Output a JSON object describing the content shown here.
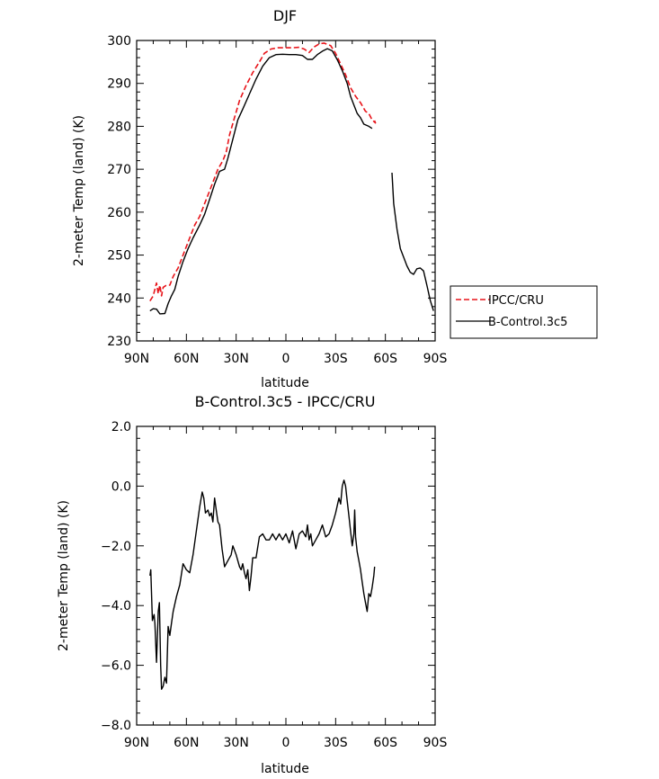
{
  "chart_data": [
    {
      "type": "line",
      "title": "DJF",
      "xlabel": "latitude",
      "ylabel": "2-meter Temp (land) (K)",
      "xlim": [
        90,
        -90
      ],
      "ylim": [
        230,
        300
      ],
      "x_ticks": [
        90,
        60,
        30,
        0,
        -30,
        -60,
        -90
      ],
      "x_tick_labels": [
        "90N",
        "60N",
        "30N",
        "0",
        "30S",
        "60S",
        "90S"
      ],
      "y_ticks": [
        230,
        240,
        250,
        260,
        270,
        280,
        290,
        300
      ],
      "y_tick_labels": [
        "230",
        "240",
        "250",
        "260",
        "270",
        "280",
        "290",
        "300"
      ],
      "legend_position": "right",
      "series": [
        {
          "name": "IPCC/CRU",
          "color": "#e8141a",
          "dash": true,
          "segments": [
            [
              [
                82,
                239.3
              ],
              [
                80,
                240.5
              ],
              [
                78,
                243.5
              ],
              [
                77,
                241
              ],
              [
                76,
                243
              ],
              [
                75,
                240.5
              ],
              [
                74,
                242.5
              ],
              [
                72,
                243
              ],
              [
                70,
                243
              ],
              [
                68,
                245
              ],
              [
                65,
                247
              ],
              [
                62,
                250
              ],
              [
                58,
                254
              ],
              [
                55,
                257
              ],
              [
                52,
                259
              ],
              [
                49,
                262
              ],
              [
                46,
                265
              ],
              [
                43,
                268
              ],
              [
                41,
                270
              ],
              [
                38,
                272
              ],
              [
                36,
                274
              ],
              [
                34,
                278
              ],
              [
                31,
                282
              ],
              [
                28,
                286
              ],
              [
                24,
                289.5
              ],
              [
                20,
                292.5
              ],
              [
                16,
                295
              ],
              [
                13,
                297
              ],
              [
                9,
                298
              ],
              [
                5,
                298.3
              ],
              [
                0,
                298.3
              ],
              [
                -4,
                298.3
              ],
              [
                -8,
                298.4
              ],
              [
                -11,
                298
              ],
              [
                -14,
                297.2
              ],
              [
                -17,
                298.5
              ],
              [
                -20,
                299.2
              ],
              [
                -23,
                299.4
              ],
              [
                -27,
                298.8
              ],
              [
                -30,
                297
              ],
              [
                -33,
                294.5
              ],
              [
                -36,
                292
              ],
              [
                -39,
                289
              ],
              [
                -42,
                287
              ],
              [
                -45,
                285.5
              ],
              [
                -48,
                283.5
              ],
              [
                -50,
                283
              ],
              [
                -52,
                281.5
              ],
              [
                -54,
                280.8
              ],
              [
                -53,
                281.7
              ]
            ]
          ]
        },
        {
          "name": "B-Control.3c5",
          "color": "#000000",
          "dash": false,
          "segments": [
            [
              [
                82,
                237
              ],
              [
                80,
                237.5
              ],
              [
                78,
                237.4
              ],
              [
                76,
                236.3
              ],
              [
                73,
                236.4
              ],
              [
                71,
                238.7
              ],
              [
                69,
                240.5
              ],
              [
                67,
                242
              ],
              [
                65,
                245
              ],
              [
                62,
                248.5
              ],
              [
                59,
                251.5
              ],
              [
                56,
                254
              ],
              [
                52,
                257
              ],
              [
                49,
                259.5
              ],
              [
                46,
                263
              ],
              [
                43,
                266.5
              ],
              [
                40,
                269.5
              ],
              [
                37,
                270
              ],
              [
                35,
                272.5
              ],
              [
                32,
                277
              ],
              [
                29,
                281.5
              ],
              [
                26,
                284
              ],
              [
                22,
                287.5
              ],
              [
                18,
                291
              ],
              [
                14,
                294
              ],
              [
                10,
                296
              ],
              [
                6,
                296.7
              ],
              [
                2,
                296.8
              ],
              [
                -2,
                296.7
              ],
              [
                -6,
                296.7
              ],
              [
                -10,
                296.5
              ],
              [
                -13,
                295.6
              ],
              [
                -16,
                295.6
              ],
              [
                -19,
                296.7
              ],
              [
                -22,
                297.5
              ],
              [
                -25,
                298.1
              ],
              [
                -28,
                297.6
              ],
              [
                -31,
                295.5
              ],
              [
                -34,
                293
              ],
              [
                -37,
                290
              ],
              [
                -39,
                287
              ],
              [
                -41,
                285
              ],
              [
                -43,
                283
              ],
              [
                -45,
                282
              ],
              [
                -47,
                280.5
              ],
              [
                -50,
                280
              ],
              [
                -52,
                279.5
              ]
            ],
            [
              [
                -64,
                269.2
              ],
              [
                -65,
                262
              ],
              [
                -67,
                256
              ],
              [
                -69,
                251.5
              ],
              [
                -71,
                249.5
              ],
              [
                -73,
                247.5
              ],
              [
                -75,
                246
              ],
              [
                -77,
                245.5
              ],
              [
                -79,
                246.8
              ],
              [
                -81,
                247
              ],
              [
                -83,
                246.3
              ],
              [
                -85,
                243
              ],
              [
                -87,
                239.5
              ],
              [
                -89,
                237
              ]
            ]
          ]
        }
      ]
    },
    {
      "type": "line",
      "title": "B-Control.3c5 - IPCC/CRU",
      "xlabel": "latitude",
      "ylabel": "2-meter Temp (land) (K)",
      "xlim": [
        90,
        -90
      ],
      "ylim": [
        -8,
        2
      ],
      "x_ticks": [
        90,
        60,
        30,
        0,
        -30,
        -60,
        -90
      ],
      "x_tick_labels": [
        "90N",
        "60N",
        "30N",
        "0",
        "30S",
        "60S",
        "90S"
      ],
      "y_ticks": [
        -8,
        -6,
        -4,
        -2,
        0,
        2
      ],
      "y_tick_labels": [
        "−8.0",
        "−6.0",
        "−4.0",
        "−2.0",
        "0.0",
        "2.0"
      ],
      "series": [
        {
          "name": "B-Control.3c5 - IPCC/CRU",
          "color": "#000000",
          "dash": false,
          "segments": [
            [
              [
                82,
                -3.0
              ],
              [
                81.5,
                -2.8
              ],
              [
                80.5,
                -4.5
              ],
              [
                79.5,
                -4.3
              ],
              [
                79,
                -4.6
              ],
              [
                78,
                -5.9
              ],
              [
                77,
                -4.2
              ],
              [
                76.3,
                -3.9
              ],
              [
                75.5,
                -6.0
              ],
              [
                75,
                -6.8
              ],
              [
                74,
                -6.7
              ],
              [
                73,
                -6.4
              ],
              [
                72,
                -6.6
              ],
              [
                71,
                -4.7
              ],
              [
                70,
                -5.0
              ],
              [
                69,
                -4.6
              ],
              [
                68,
                -4.2
              ],
              [
                66,
                -3.7
              ],
              [
                64,
                -3.3
              ],
              [
                62,
                -2.6
              ],
              [
                60,
                -2.8
              ],
              [
                58,
                -2.9
              ],
              [
                56,
                -2.3
              ],
              [
                54,
                -1.5
              ],
              [
                52,
                -0.7
              ],
              [
                50.5,
                -0.2
              ],
              [
                49.5,
                -0.4
              ],
              [
                48.5,
                -0.9
              ],
              [
                47,
                -0.8
              ],
              [
                46,
                -1.0
              ],
              [
                45,
                -0.9
              ],
              [
                44,
                -1.2
              ],
              [
                43,
                -0.4
              ],
              [
                42,
                -0.8
              ],
              [
                41,
                -1.2
              ],
              [
                40,
                -1.3
              ],
              [
                38.5,
                -2.1
              ],
              [
                37,
                -2.7
              ],
              [
                35,
                -2.5
              ],
              [
                33,
                -2.3
              ],
              [
                32,
                -2.0
              ],
              [
                30,
                -2.3
              ],
              [
                28,
                -2.7
              ],
              [
                27,
                -2.8
              ],
              [
                26,
                -2.6
              ],
              [
                25,
                -2.9
              ],
              [
                24,
                -3.1
              ],
              [
                23,
                -2.8
              ],
              [
                22,
                -3.5
              ],
              [
                21,
                -3.0
              ],
              [
                20,
                -2.4
              ],
              [
                18,
                -2.4
              ],
              [
                16,
                -1.7
              ],
              [
                14,
                -1.6
              ],
              [
                12,
                -1.8
              ],
              [
                10,
                -1.8
              ],
              [
                8,
                -1.6
              ],
              [
                6,
                -1.8
              ],
              [
                4,
                -1.6
              ],
              [
                2,
                -1.8
              ],
              [
                0,
                -1.6
              ],
              [
                -2,
                -1.9
              ],
              [
                -4,
                -1.5
              ],
              [
                -6,
                -2.1
              ],
              [
                -8,
                -1.6
              ],
              [
                -10,
                -1.5
              ],
              [
                -12,
                -1.7
              ],
              [
                -13,
                -1.3
              ],
              [
                -14,
                -1.8
              ],
              [
                -15,
                -1.6
              ],
              [
                -16,
                -2.0
              ],
              [
                -18,
                -1.8
              ],
              [
                -20,
                -1.6
              ],
              [
                -22,
                -1.3
              ],
              [
                -24,
                -1.7
              ],
              [
                -26,
                -1.6
              ],
              [
                -28,
                -1.3
              ],
              [
                -30,
                -0.9
              ],
              [
                -32,
                -0.4
              ],
              [
                -33,
                -0.6
              ],
              [
                -34,
                0.0
              ],
              [
                -35,
                0.2
              ],
              [
                -36,
                0.0
              ],
              [
                -37,
                -0.5
              ],
              [
                -38,
                -1.0
              ],
              [
                -39,
                -1.5
              ],
              [
                -40,
                -2.0
              ],
              [
                -41,
                -1.6
              ],
              [
                -41.5,
                -0.8
              ],
              [
                -42,
                -1.7
              ],
              [
                -43,
                -2.2
              ],
              [
                -44,
                -2.5
              ],
              [
                -45,
                -2.8
              ],
              [
                -46,
                -3.2
              ],
              [
                -47,
                -3.6
              ],
              [
                -48,
                -3.9
              ],
              [
                -49,
                -4.2
              ],
              [
                -50,
                -3.6
              ],
              [
                -51,
                -3.7
              ],
              [
                -52,
                -3.4
              ],
              [
                -53,
                -3.0
              ],
              [
                -53.5,
                -2.7
              ]
            ]
          ]
        }
      ]
    }
  ],
  "legend": {
    "items": [
      {
        "label": "IPCC/CRU",
        "color": "#e8141a",
        "dash": true
      },
      {
        "label": "B-Control.3c5",
        "color": "#000000",
        "dash": false
      }
    ]
  }
}
